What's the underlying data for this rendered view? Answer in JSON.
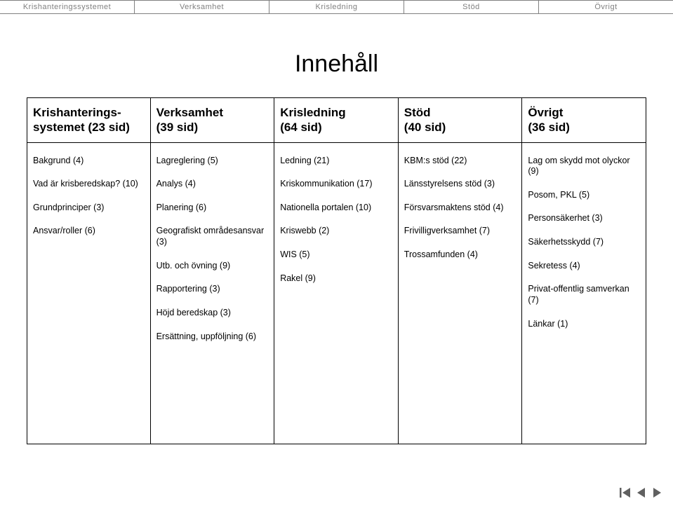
{
  "topbar": {
    "tabs": [
      "Krishanteringssystemet",
      "Verksamhet",
      "Krisledning",
      "Stöd",
      "Övrigt"
    ]
  },
  "title": "Innehåll",
  "columns": [
    {
      "header": "Krishanterings-\nsystemet (23 sid)",
      "items": [
        "Bakgrund (4)",
        "Vad är krisberedskap? (10)",
        "Grundprinciper (3)",
        "Ansvar/roller (6)"
      ]
    },
    {
      "header": "Verksamhet\n(39 sid)",
      "items": [
        "Lagreglering (5)",
        "Analys (4)",
        "Planering (6)",
        "Geografiskt områdesansvar (3)",
        "Utb. och övning (9)",
        "Rapportering (3)",
        "Höjd beredskap (3)",
        "Ersättning, uppföljning (6)"
      ]
    },
    {
      "header": "Krisledning\n(64 sid)",
      "items": [
        "Ledning (21)",
        "Kriskommunikation (17)",
        "Nationella portalen (10)",
        "Kriswebb (2)",
        "WIS (5)",
        "Rakel (9)"
      ]
    },
    {
      "header": "Stöd\n(40 sid)",
      "items": [
        "KBM:s stöd (22)",
        "Länsstyrelsens stöd (3)",
        "Försvarsmaktens stöd (4)",
        "Frivilligverksamhet (7)",
        "Trossamfunden (4)"
      ]
    },
    {
      "header": "Övrigt\n(36 sid)",
      "items": [
        "Lag om skydd mot olyckor (9)",
        "Posom, PKL (5)",
        "Personsäkerhet (3)",
        "Säkerhetsskydd (7)",
        "Sekretess (4)",
        "Privat-offentlig samverkan (7)",
        "Länkar (1)"
      ]
    }
  ],
  "colors": {
    "tab_text": "#808080",
    "tab_border": "#808080",
    "cell_border": "#000000",
    "text": "#000000",
    "bg": "#ffffff",
    "nav_fill": "#606060"
  }
}
